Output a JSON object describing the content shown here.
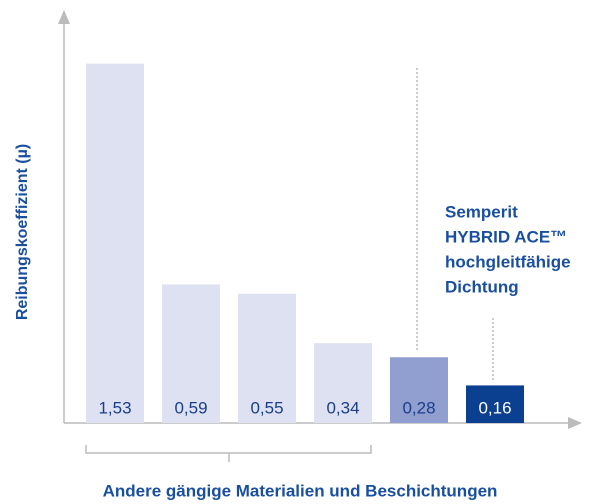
{
  "chart_data": {
    "type": "bar",
    "categories": [
      null,
      null,
      null,
      null,
      null,
      null
    ],
    "values": [
      1.53,
      0.59,
      0.55,
      0.34,
      0.28,
      0.16
    ],
    "value_labels": [
      "1,53",
      "0,59",
      "0,55",
      "0,34",
      "0,28",
      "0,16"
    ],
    "colors": [
      "#dde1f1",
      "#dde1f1",
      "#dde1f1",
      "#dde1f1",
      "#909ed0",
      "#0b3f8f"
    ],
    "label_colors": [
      "#1a3f8a",
      "#1a3f8a",
      "#1a3f8a",
      "#1a3f8a",
      "#1a3f8a",
      "#ffffff"
    ],
    "ylim": [
      0,
      1.75
    ],
    "ylabel": "Reibungskoeffizient (µ)",
    "xlabel": "Andere gängige Materialien und Beschichtungen",
    "annotation": [
      "Semperit",
      "HYBRID ACE™",
      "hochgleitfähige",
      "Dichtung"
    ]
  }
}
